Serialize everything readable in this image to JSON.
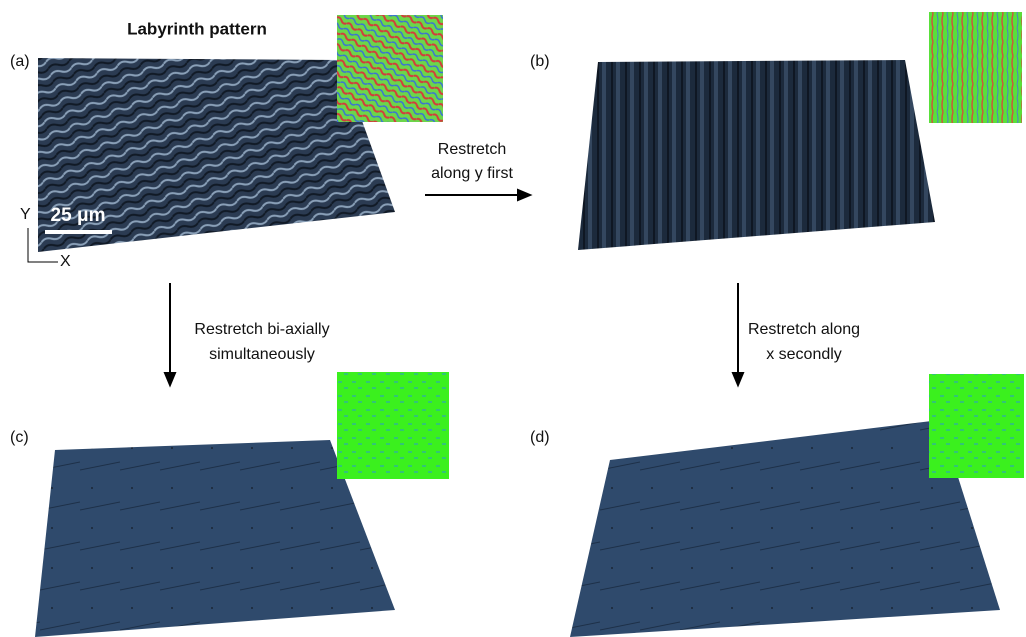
{
  "title": "Labyrinth pattern",
  "panels": [
    {
      "label": "(a)"
    },
    {
      "label": "(b)"
    },
    {
      "label": "(c)"
    },
    {
      "label": "(d)"
    }
  ],
  "scale_bar": "25 μm",
  "axes": {
    "y": "Y",
    "x": "X"
  },
  "arrows": [
    {
      "lines": [
        "Restretch",
        "along y first"
      ]
    },
    {
      "lines": [
        "Restretch bi-axially",
        "simultaneously"
      ]
    },
    {
      "lines": [
        "Restretch along",
        "x secondly"
      ]
    }
  ]
}
